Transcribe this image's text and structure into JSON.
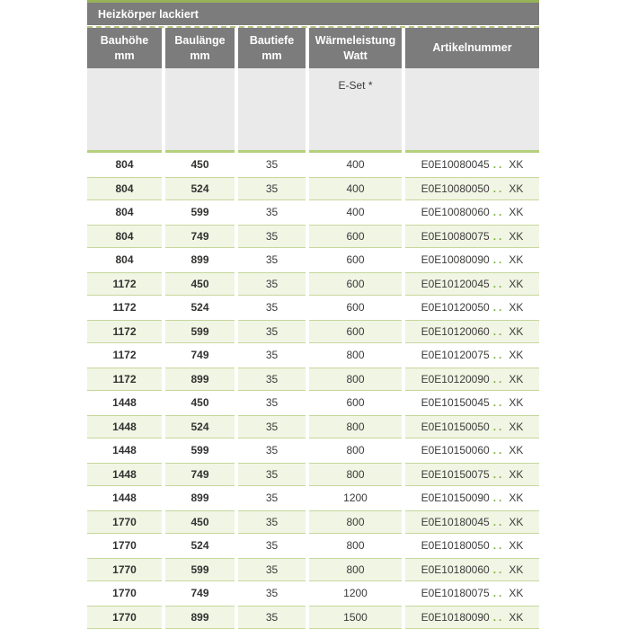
{
  "title": "Heizkörper lackiert",
  "columns": [
    {
      "label": "Bauhöhe",
      "unit": "mm"
    },
    {
      "label": "Baulänge",
      "unit": "mm"
    },
    {
      "label": "Bautiefe",
      "unit": "mm"
    },
    {
      "label": "Wärmeleistung",
      "unit": "Watt"
    },
    {
      "label": "Artikelnummer",
      "unit": ""
    }
  ],
  "subheader": {
    "eset_label": "E-Set *"
  },
  "artikel_dots": "..",
  "colors": {
    "accent_green": "#97b257",
    "separator_green": "#b5d07c",
    "row_alt_green": "#f1f5e4",
    "header_gray": "#7c7c7c",
    "subheader_gray": "#eaeaea",
    "dots_green": "#7cb23e"
  },
  "rows": [
    {
      "bauhoehe": "804",
      "baulaenge": "450",
      "bautiefe": "35",
      "watt": "400",
      "artikel": "E0E10080045",
      "artikel_suffix": "XK"
    },
    {
      "bauhoehe": "804",
      "baulaenge": "524",
      "bautiefe": "35",
      "watt": "400",
      "artikel": "E0E10080050",
      "artikel_suffix": "XK"
    },
    {
      "bauhoehe": "804",
      "baulaenge": "599",
      "bautiefe": "35",
      "watt": "400",
      "artikel": "E0E10080060",
      "artikel_suffix": "XK"
    },
    {
      "bauhoehe": "804",
      "baulaenge": "749",
      "bautiefe": "35",
      "watt": "600",
      "artikel": "E0E10080075",
      "artikel_suffix": "XK"
    },
    {
      "bauhoehe": "804",
      "baulaenge": "899",
      "bautiefe": "35",
      "watt": "600",
      "artikel": "E0E10080090",
      "artikel_suffix": "XK"
    },
    {
      "bauhoehe": "1172",
      "baulaenge": "450",
      "bautiefe": "35",
      "watt": "600",
      "artikel": "E0E10120045",
      "artikel_suffix": "XK"
    },
    {
      "bauhoehe": "1172",
      "baulaenge": "524",
      "bautiefe": "35",
      "watt": "600",
      "artikel": "E0E10120050",
      "artikel_suffix": "XK"
    },
    {
      "bauhoehe": "1172",
      "baulaenge": "599",
      "bautiefe": "35",
      "watt": "600",
      "artikel": "E0E10120060",
      "artikel_suffix": "XK"
    },
    {
      "bauhoehe": "1172",
      "baulaenge": "749",
      "bautiefe": "35",
      "watt": "800",
      "artikel": "E0E10120075",
      "artikel_suffix": "XK"
    },
    {
      "bauhoehe": "1172",
      "baulaenge": "899",
      "bautiefe": "35",
      "watt": "800",
      "artikel": "E0E10120090",
      "artikel_suffix": "XK"
    },
    {
      "bauhoehe": "1448",
      "baulaenge": "450",
      "bautiefe": "35",
      "watt": "600",
      "artikel": "E0E10150045",
      "artikel_suffix": "XK"
    },
    {
      "bauhoehe": "1448",
      "baulaenge": "524",
      "bautiefe": "35",
      "watt": "800",
      "artikel": "E0E10150050",
      "artikel_suffix": "XK"
    },
    {
      "bauhoehe": "1448",
      "baulaenge": "599",
      "bautiefe": "35",
      "watt": "800",
      "artikel": "E0E10150060",
      "artikel_suffix": "XK"
    },
    {
      "bauhoehe": "1448",
      "baulaenge": "749",
      "bautiefe": "35",
      "watt": "800",
      "artikel": "E0E10150075",
      "artikel_suffix": "XK"
    },
    {
      "bauhoehe": "1448",
      "baulaenge": "899",
      "bautiefe": "35",
      "watt": "1200",
      "artikel": "E0E10150090",
      "artikel_suffix": "XK"
    },
    {
      "bauhoehe": "1770",
      "baulaenge": "450",
      "bautiefe": "35",
      "watt": "800",
      "artikel": "E0E10180045",
      "artikel_suffix": "XK"
    },
    {
      "bauhoehe": "1770",
      "baulaenge": "524",
      "bautiefe": "35",
      "watt": "800",
      "artikel": "E0E10180050",
      "artikel_suffix": "XK"
    },
    {
      "bauhoehe": "1770",
      "baulaenge": "599",
      "bautiefe": "35",
      "watt": "800",
      "artikel": "E0E10180060",
      "artikel_suffix": "XK"
    },
    {
      "bauhoehe": "1770",
      "baulaenge": "749",
      "bautiefe": "35",
      "watt": "1200",
      "artikel": "E0E10180075",
      "artikel_suffix": "XK"
    },
    {
      "bauhoehe": "1770",
      "baulaenge": "899",
      "bautiefe": "35",
      "watt": "1500",
      "artikel": "E0E10180090",
      "artikel_suffix": "XK"
    }
  ]
}
